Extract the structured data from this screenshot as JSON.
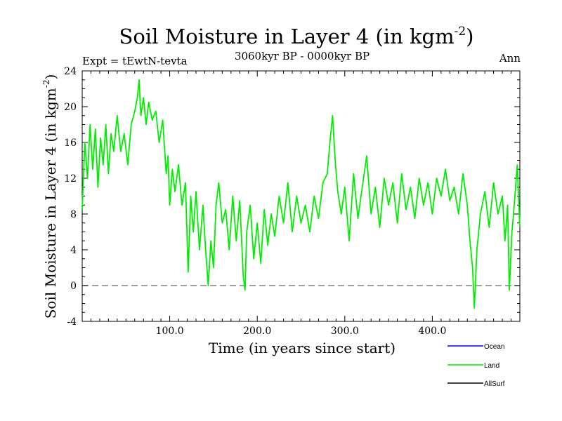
{
  "chart_data": {
    "type": "line",
    "title": "Soil Moisture in Layer 4 (in kgm",
    "title_superscript": "-2",
    "title_close": ")",
    "subtitle": "3060kyr BP - 0000kyr BP",
    "expt_label": "Expt = tEwtN-tevta",
    "season_label": "Ann",
    "xlabel": "Time (in years since start)",
    "ylabel": "Soil Moisture in Layer 4 (in kgm",
    "ylabel_superscript": "-2",
    "ylabel_close": ")",
    "xlim": [
      0,
      500
    ],
    "ylim": [
      -4,
      24
    ],
    "x_ticks": [
      100,
      200,
      300,
      400
    ],
    "x_tick_labels": [
      "100.0",
      "200.0",
      "300.0",
      "400.0"
    ],
    "y_ticks": [
      -4,
      0,
      4,
      8,
      12,
      16,
      20,
      24
    ],
    "y_tick_labels": [
      "-4",
      "0",
      "4",
      "8",
      "12",
      "16",
      "20",
      "24"
    ],
    "zero_line": {
      "y": 0,
      "style": "dashed",
      "color": "#808080"
    },
    "legend_position": "bottom-right",
    "series": [
      {
        "name": "Ocean",
        "color": "#0000ff",
        "x": [],
        "values": []
      },
      {
        "name": "Land",
        "color": "#00ee00",
        "x": [
          0,
          3,
          6,
          9,
          12,
          15,
          18,
          21,
          24,
          27,
          30,
          33,
          36,
          40,
          44,
          48,
          52,
          56,
          60,
          63,
          65,
          67,
          70,
          73,
          76,
          80,
          84,
          88,
          92,
          96,
          98,
          100,
          103,
          106,
          110,
          114,
          118,
          121,
          124,
          127,
          130,
          134,
          138,
          141,
          144,
          147,
          150,
          153,
          156,
          160,
          164,
          168,
          172,
          176,
          180,
          184,
          186,
          188,
          192,
          196,
          200,
          204,
          208,
          212,
          216,
          220,
          225,
          230,
          235,
          240,
          245,
          250,
          255,
          260,
          265,
          270,
          275,
          280,
          283,
          286,
          289,
          292,
          296,
          300,
          305,
          310,
          315,
          320,
          325,
          330,
          335,
          340,
          345,
          350,
          355,
          360,
          365,
          370,
          375,
          380,
          385,
          390,
          395,
          400,
          405,
          410,
          415,
          420,
          425,
          430,
          435,
          440,
          443,
          446,
          448,
          451,
          455,
          460,
          465,
          470,
          475,
          480,
          483,
          486,
          488,
          491,
          494,
          497,
          500
        ],
        "values": [
          8.5,
          16.0,
          12.0,
          18.0,
          13.0,
          17.5,
          11.0,
          16.5,
          13.5,
          18.0,
          12.5,
          17.0,
          15.0,
          19.0,
          15.0,
          17.0,
          13.5,
          18.0,
          19.5,
          21.0,
          23.0,
          19.0,
          21.0,
          18.0,
          20.5,
          18.5,
          19.5,
          16.0,
          18.5,
          12.5,
          14.5,
          9.0,
          13.0,
          10.5,
          13.5,
          9.0,
          11.5,
          1.5,
          10.0,
          6.0,
          10.5,
          4.0,
          9.0,
          4.0,
          0.0,
          5.0,
          2.0,
          9.0,
          11.5,
          7.0,
          8.5,
          4.0,
          10.0,
          5.0,
          9.5,
          1.0,
          -0.5,
          6.0,
          9.0,
          3.0,
          7.0,
          2.5,
          8.5,
          4.5,
          8.0,
          5.5,
          10.0,
          7.0,
          11.5,
          6.0,
          10.0,
          7.0,
          9.0,
          6.0,
          10.0,
          7.5,
          11.5,
          12.5,
          16.0,
          19.0,
          14.0,
          10.5,
          8.0,
          11.0,
          5.0,
          12.5,
          7.5,
          11.0,
          14.5,
          8.0,
          11.0,
          6.5,
          12.0,
          9.0,
          11.5,
          7.0,
          12.5,
          8.5,
          11.0,
          7.5,
          12.0,
          9.0,
          11.5,
          8.0,
          12.0,
          10.0,
          13.0,
          9.5,
          11.0,
          8.0,
          12.5,
          9.0,
          5.0,
          2.0,
          -2.5,
          4.0,
          8.0,
          10.5,
          6.5,
          11.5,
          8.0,
          10.0,
          5.0,
          9.0,
          -0.5,
          6.0,
          9.5,
          13.5,
          6.5
        ]
      },
      {
        "name": "AllSurf",
        "color": "#000000",
        "x": [],
        "values": []
      }
    ]
  }
}
